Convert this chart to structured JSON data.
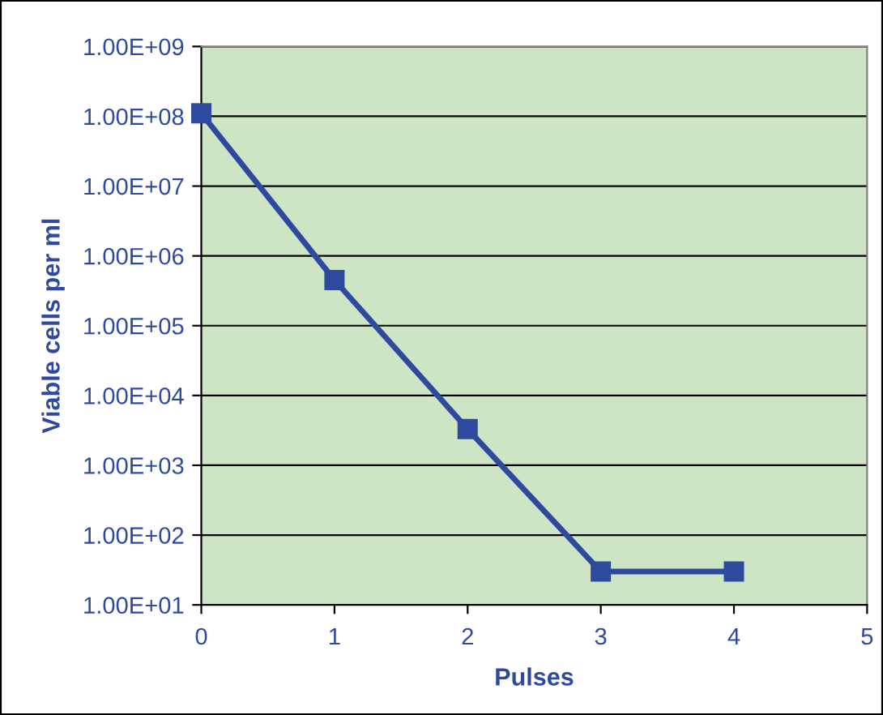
{
  "chart_data": {
    "type": "line",
    "xlabel": "Pulses",
    "ylabel": "Viable cells per ml",
    "x": [
      0,
      1,
      2,
      3,
      4
    ],
    "series": [
      {
        "color": "#2e4a9e",
        "values": [
          110000000,
          450000,
          3300,
          30,
          30
        ]
      }
    ],
    "log": "y",
    "xlim": [
      0,
      5
    ],
    "xticks": [
      0,
      1,
      2,
      3,
      4,
      5
    ],
    "ylim": [
      10,
      1000000000
    ],
    "yticks": [
      {
        "value": 10,
        "label": "1.00E+01"
      },
      {
        "value": 100,
        "label": "1.00E+02"
      },
      {
        "value": 1000,
        "label": "1.00E+03"
      },
      {
        "value": 10000,
        "label": "1.00E+04"
      },
      {
        "value": 100000,
        "label": "1.00E+05"
      },
      {
        "value": 1000000,
        "label": "1.00E+06"
      },
      {
        "value": 10000000,
        "label": "1.00E+07"
      },
      {
        "value": 100000000,
        "label": "1.00E+08"
      },
      {
        "value": 1000000000,
        "label": "1.00E+09"
      }
    ],
    "grid": "y",
    "marker": "square",
    "line_style": "solid"
  }
}
